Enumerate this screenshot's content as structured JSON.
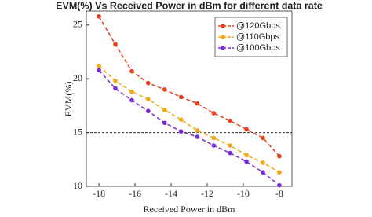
{
  "chart_data": {
    "type": "line",
    "title": "EVM(%) Vs Received Power in dBm for different data rate",
    "x_label": "Received Power in dBm",
    "y_label": "EVM(%)",
    "x": [
      -18,
      -17.09,
      -16.18,
      -15.27,
      -14.36,
      -13.45,
      -12.55,
      -11.64,
      -10.73,
      -9.82,
      -8.91,
      -8
    ],
    "series": [
      {
        "name": "@120Gbps",
        "color": "#e8401c",
        "values": [
          25.8,
          23.2,
          20.7,
          19.6,
          19.0,
          18.3,
          17.7,
          16.8,
          16.1,
          15.3,
          14.5,
          12.8
        ]
      },
      {
        "name": "@110Gbps",
        "color": "#f0a818",
        "values": [
          21.2,
          19.8,
          18.8,
          18.1,
          17.1,
          16.2,
          15.2,
          14.5,
          13.8,
          12.9,
          12.2,
          11.3
        ]
      },
      {
        "name": "@100Gbps",
        "color": "#7a2bd6",
        "values": [
          20.8,
          19.1,
          18.0,
          17.0,
          15.9,
          15.1,
          14.6,
          13.8,
          13.1,
          12.3,
          11.3,
          10.1
        ]
      }
    ],
    "reference_line": 15,
    "xlim": [
      -18.7,
      -7.3
    ],
    "ylim": [
      10,
      26.3
    ],
    "xticks": [
      -18,
      -16,
      -14,
      -12,
      -10,
      -8
    ],
    "yticks": [
      10,
      15,
      20,
      25
    ],
    "legend": "upper right"
  }
}
